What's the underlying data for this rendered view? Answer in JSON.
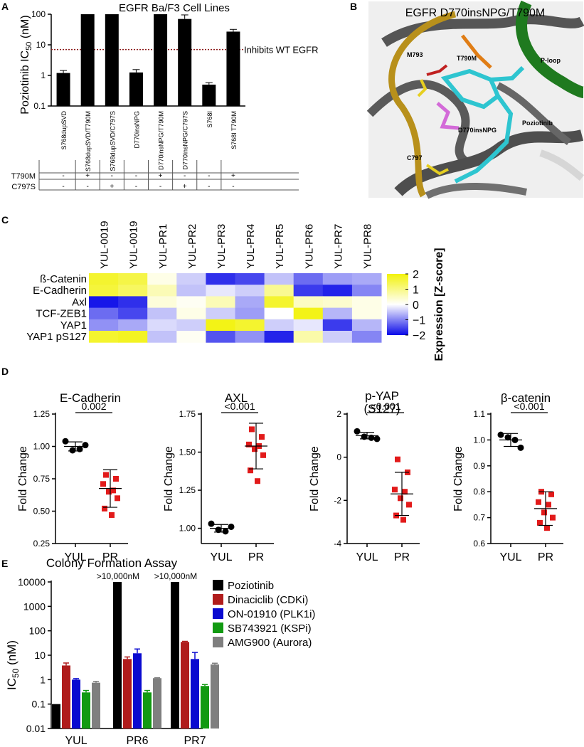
{
  "panelA": {
    "letter": "A",
    "title": "EGFR Ba/F3 Cell Lines",
    "ylabel_main": "Poziotinib IC",
    "ylabel_sub": "50",
    "ylabel_unit": " (nM)",
    "ref_label": "Inhibits WT EGFR",
    "row_labels": [
      "T790M",
      "C797S"
    ],
    "chart_data": {
      "type": "bar",
      "scale": "log",
      "ylim": [
        0.1,
        100
      ],
      "yticks": [
        "0.1",
        "1",
        "10",
        "100"
      ],
      "reference_line": 7,
      "categories": [
        "S768dupSVD",
        "S768dupSVD/T790M",
        "S768dupSVD/C797S",
        "D770insNPG",
        "D770insNPG/T790M",
        "D770insNPG/C797S",
        "S768I",
        "S768I T790M"
      ],
      "values": [
        1.2,
        100,
        100,
        1.25,
        100,
        70,
        0.5,
        27
      ],
      "errors": [
        0.25,
        0,
        0,
        0.3,
        0,
        25,
        0.08,
        5
      ],
      "t790m": [
        "-",
        "+",
        "-",
        "-",
        "+",
        "-",
        "-",
        "+"
      ],
      "c797s": [
        "-",
        "-",
        "+",
        "-",
        "-",
        "+",
        "-",
        "-"
      ]
    }
  },
  "panelB": {
    "letter": "B",
    "title": "EGFR D770insNPG/T790M",
    "labels": {
      "m793": "M793",
      "t790m": "T790M",
      "ploop": "P-loop",
      "d770": "D770insNPG",
      "poziotinib": "Poziotinib",
      "c797": "C797"
    }
  },
  "panelC": {
    "letter": "C",
    "legend_title": "Expression [Z-score]",
    "chart_data": {
      "type": "heatmap",
      "columns": [
        "YUL-0019",
        "YUL-0019",
        "YUL-PR1",
        "YUL-PR2",
        "YUL-PR3",
        "YUL-PR4",
        "YUL-PR5",
        "YUL-PR6",
        "YUL-PR7",
        "YUL-PR8"
      ],
      "rows": [
        "ß-Catenin",
        "E-Cadherin",
        "Axl",
        "TCF-ZEB1",
        "YAP1",
        "YAP1 pS127"
      ],
      "values": [
        [
          1.7,
          1.5,
          0.2,
          -0.4,
          -1.7,
          -1.5,
          -0.5,
          -1.2,
          -0.8,
          -0.7
        ],
        [
          1.6,
          1.3,
          0.6,
          -0.5,
          -0.2,
          -0.4,
          0.9,
          -1.6,
          -1.8,
          -1.0
        ],
        [
          -1.9,
          -1.7,
          0.3,
          0.1,
          0.6,
          -0.7,
          1.7,
          0.5,
          0.4,
          0.2
        ],
        [
          -1.2,
          -1.5,
          -0.5,
          0.2,
          -0.4,
          -0.8,
          0.0,
          1.9,
          -0.6,
          0.2
        ],
        [
          -0.9,
          -0.7,
          -0.3,
          -0.4,
          1.9,
          1.7,
          -0.4,
          -0.2,
          -1.6,
          -0.6
        ],
        [
          1.7,
          1.8,
          -0.5,
          0.1,
          -1.4,
          -0.9,
          -1.8,
          0.7,
          -0.4,
          -1.0
        ]
      ],
      "scale": {
        "min": -2,
        "max": 2,
        "ticks": [
          "2",
          "1",
          "0",
          "−1",
          "−2"
        ]
      }
    }
  },
  "panelD": {
    "letter": "D",
    "ylabel": "Fold  Change",
    "plots": [
      {
        "title": "E-Cadherin",
        "title2": "",
        "pvalue": "0.002",
        "yticks": [
          "0.25",
          "0.50",
          "0.75",
          "1.00",
          "1.25"
        ],
        "ylim": [
          0.25,
          1.25
        ],
        "categories": [
          "YUL",
          "PR"
        ],
        "yul": [
          1.04,
          0.97,
          0.98,
          1.01
        ],
        "pr": [
          0.78,
          0.75,
          0.71,
          0.66,
          0.65,
          0.6,
          0.52,
          0.47
        ],
        "yul_mean": 1.0,
        "yul_sd": 0.035,
        "pr_mean": 0.675,
        "pr_sd": 0.145
      },
      {
        "title": "AXL",
        "title2": "",
        "pvalue": "<0.001",
        "yticks": [
          "1.00",
          "1.25",
          "1.50",
          "1.75"
        ],
        "ylim": [
          0.9,
          1.75
        ],
        "categories": [
          "YUL",
          "PR"
        ],
        "yul": [
          1.03,
          0.99,
          0.98,
          1.01
        ],
        "pr": [
          1.65,
          1.6,
          1.55,
          1.54,
          1.52,
          1.48,
          1.38,
          1.31
        ],
        "yul_mean": 1.0,
        "yul_sd": 0.025,
        "pr_mean": 1.54,
        "pr_sd": 0.15
      },
      {
        "title": "p-YAP",
        "title2": "(S127)",
        "pvalue": "<0.001",
        "yticks": [
          "-4",
          "-2",
          "0",
          "2"
        ],
        "ylim": [
          -4,
          2
        ],
        "categories": [
          "YUL",
          "PR"
        ],
        "yul": [
          1.2,
          0.95,
          0.9,
          0.85
        ],
        "pr": [
          -0.1,
          -0.7,
          -1.5,
          -1.6,
          -1.9,
          -2.2,
          -2.7,
          -2.9
        ],
        "yul_mean": 1.0,
        "yul_sd": 0.15,
        "pr_mean": -1.7,
        "pr_sd": 1.0
      },
      {
        "title": "β-catenin",
        "title2": "",
        "pvalue": "<0.001",
        "yticks": [
          "0.6",
          "0.7",
          "0.8",
          "0.9",
          "1.0",
          "1.1"
        ],
        "ylim": [
          0.6,
          1.1
        ],
        "categories": [
          "YUL",
          "PR"
        ],
        "yul": [
          1.02,
          1.01,
          1.0,
          0.97
        ],
        "pr": [
          0.8,
          0.79,
          0.76,
          0.75,
          0.72,
          0.7,
          0.68,
          0.66
        ],
        "yul_mean": 1.0,
        "yul_sd": 0.025,
        "pr_mean": 0.735,
        "pr_sd": 0.065
      }
    ]
  },
  "panelE": {
    "letter": "E",
    "title": "Colony Formation Assay",
    "ylabel_main": "IC",
    "ylabel_sub": "50",
    "ylabel_unit": " (nM)",
    "annotation": ">10,000nM",
    "chart_data": {
      "type": "bar",
      "scale": "log",
      "ylim": [
        0.01,
        10000
      ],
      "yticks": [
        "0.01",
        "0.1",
        "1",
        "10",
        "100",
        "1000",
        "10000"
      ],
      "categories": [
        "YUL",
        "PR6",
        "PR7"
      ],
      "series": [
        {
          "name": "Poziotinib",
          "color": "#000000",
          "values": [
            0.1,
            10000,
            10000
          ],
          "errors": [
            0,
            0,
            0
          ]
        },
        {
          "name": "Dinaciclib (CDKi)",
          "color": "#b01c1c",
          "values": [
            3.8,
            7,
            35
          ],
          "errors": [
            1,
            1.5,
            2
          ]
        },
        {
          "name": "ON-01910 (PLK1i)",
          "color": "#0a0ad0",
          "values": [
            1.0,
            12,
            7
          ],
          "errors": [
            0.1,
            6,
            6
          ]
        },
        {
          "name": "SB743921 (KSPi)",
          "color": "#129a12",
          "values": [
            0.3,
            0.3,
            0.55
          ],
          "errors": [
            0.06,
            0.06,
            0.08
          ]
        },
        {
          "name": "AMG900 (Aurora)",
          "color": "#7f7f7f",
          "values": [
            0.75,
            1.15,
            4.2
          ],
          "errors": [
            0.1,
            0.05,
            0.5
          ]
        }
      ]
    }
  }
}
